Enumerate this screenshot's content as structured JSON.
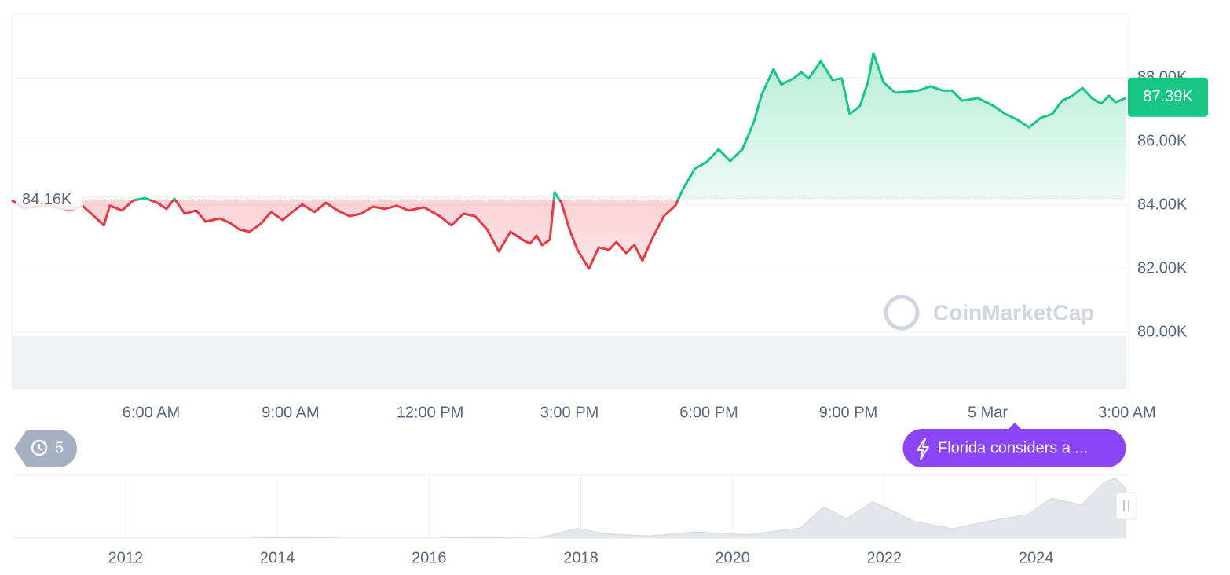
{
  "chart_data": {
    "type": "line",
    "x": [
      0,
      0.25,
      0.76,
      1.27,
      1.52,
      1.77,
      1.98,
      2.11,
      2.37,
      2.62,
      2.87,
      3.13,
      3.33,
      3.5,
      3.72,
      3.97,
      4.17,
      4.48,
      4.73,
      4.9,
      5.12,
      5.36,
      5.58,
      5.83,
      6.08,
      6.25,
      6.51,
      6.76,
      7.01,
      7.27,
      7.52,
      7.77,
      8.03,
      8.28,
      8.54,
      8.87,
      9.21,
      9.46,
      9.72,
      9.97,
      10.23,
      10.48,
      10.73,
      10.99,
      11.15,
      11.29,
      11.41,
      11.58,
      11.68,
      11.83,
      12,
      12.17,
      12.42,
      12.63,
      12.85,
      13.01,
      13.22,
      13.4,
      13.57,
      13.77,
      14.03,
      14.28,
      14.45,
      14.7,
      14.96,
      15.21,
      15.46,
      15.72,
      15.97,
      16.14,
      16.39,
      16.56,
      16.82,
      16.99,
      17.15,
      17.41,
      17.66,
      17.86,
      18.03,
      18.25,
      18.42,
      18.54,
      18.76,
      19.01,
      19.27,
      19.52,
      19.77,
      20.03,
      20.23,
      20.45,
      20.79,
      21.13,
      21.38,
      21.63,
      21.89,
      22.14,
      22.39,
      22.6,
      22.82,
      23.04,
      23.24,
      23.44,
      23.61,
      23.75,
      23.97
    ],
    "values": [
      84150,
      83900,
      83980,
      83830,
      83980,
      83650,
      83360,
      83980,
      83830,
      84150,
      84220,
      84070,
      83880,
      84200,
      83730,
      83830,
      83480,
      83580,
      83410,
      83230,
      83160,
      83410,
      83780,
      83530,
      83830,
      84020,
      83780,
      84070,
      83830,
      83650,
      83730,
      83950,
      83880,
      83980,
      83830,
      83930,
      83650,
      83360,
      83730,
      83650,
      83230,
      82540,
      83160,
      82910,
      82790,
      83040,
      82740,
      82910,
      84400,
      84070,
      83230,
      82590,
      82000,
      82670,
      82590,
      82840,
      82490,
      82740,
      82250,
      82910,
      83650,
      83980,
      84520,
      85140,
      85360,
      85750,
      85380,
      85750,
      86620,
      87480,
      88270,
      87780,
      87980,
      88170,
      87980,
      88520,
      87930,
      87980,
      86860,
      87110,
      87850,
      88770,
      87850,
      87530,
      87560,
      87600,
      87730,
      87600,
      87600,
      87280,
      87360,
      87110,
      86860,
      86690,
      86440,
      86740,
      86860,
      87280,
      87430,
      87680,
      87360,
      87190,
      87430,
      87230,
      87360
    ],
    "color_up": "#16c784",
    "color_down": "#ea3943",
    "xlim": [
      0,
      24
    ],
    "xticks": [
      {
        "value": 3,
        "label": "6:00 AM"
      },
      {
        "value": 6,
        "label": "9:00 AM"
      },
      {
        "value": 9,
        "label": "12:00 PM"
      },
      {
        "value": 12,
        "label": "3:00 PM"
      },
      {
        "value": 15,
        "label": "6:00 PM"
      },
      {
        "value": 18,
        "label": "9:00 PM"
      },
      {
        "value": 21,
        "label": "5 Mar"
      },
      {
        "value": 24,
        "label": "3:00 AM"
      }
    ],
    "ylim": [
      80000,
      90000
    ],
    "yticks": [
      {
        "value": 80000,
        "label": "80.00K"
      },
      {
        "value": 82000,
        "label": "82.00K"
      },
      {
        "value": 84000,
        "label": "84.00K"
      },
      {
        "value": 86000,
        "label": "86.00K"
      },
      {
        "value": 88000,
        "label": "88.00K"
      }
    ],
    "grid": true,
    "baseline": {
      "value": 84160,
      "label": "84.16K"
    },
    "last_price": {
      "value": 87390,
      "label": "87.39K"
    }
  },
  "navigator": {
    "type": "area",
    "x": [
      2010.5,
      2011.5,
      2012.5,
      2013.5,
      2014,
      2015,
      2016,
      2017,
      2017.5,
      2017.96,
      2018.3,
      2018.9,
      2019.5,
      2020.2,
      2020.9,
      2021.2,
      2021.5,
      2021.85,
      2022.4,
      2022.9,
      2023.3,
      2023.9,
      2024.2,
      2024.6,
      2024.9,
      2025.05,
      2025.18
    ],
    "values": [
      0,
      10,
      7,
      100,
      800,
      300,
      430,
      1000,
      2500,
      17000,
      8000,
      3800,
      11000,
      6000,
      18000,
      55000,
      34000,
      64000,
      29000,
      16500,
      28000,
      42000,
      70000,
      58000,
      98000,
      105000,
      87000
    ],
    "color": "#e3e6eb",
    "xlim": [
      2010.5,
      2025.2
    ],
    "ylim": [
      0,
      110000
    ],
    "xticks": [
      2012,
      2014,
      2016,
      2018,
      2020,
      2022,
      2024
    ]
  },
  "ui": {
    "history_count": 5,
    "news": "Florida considers a ...",
    "watermark": "CoinMarketCap"
  }
}
